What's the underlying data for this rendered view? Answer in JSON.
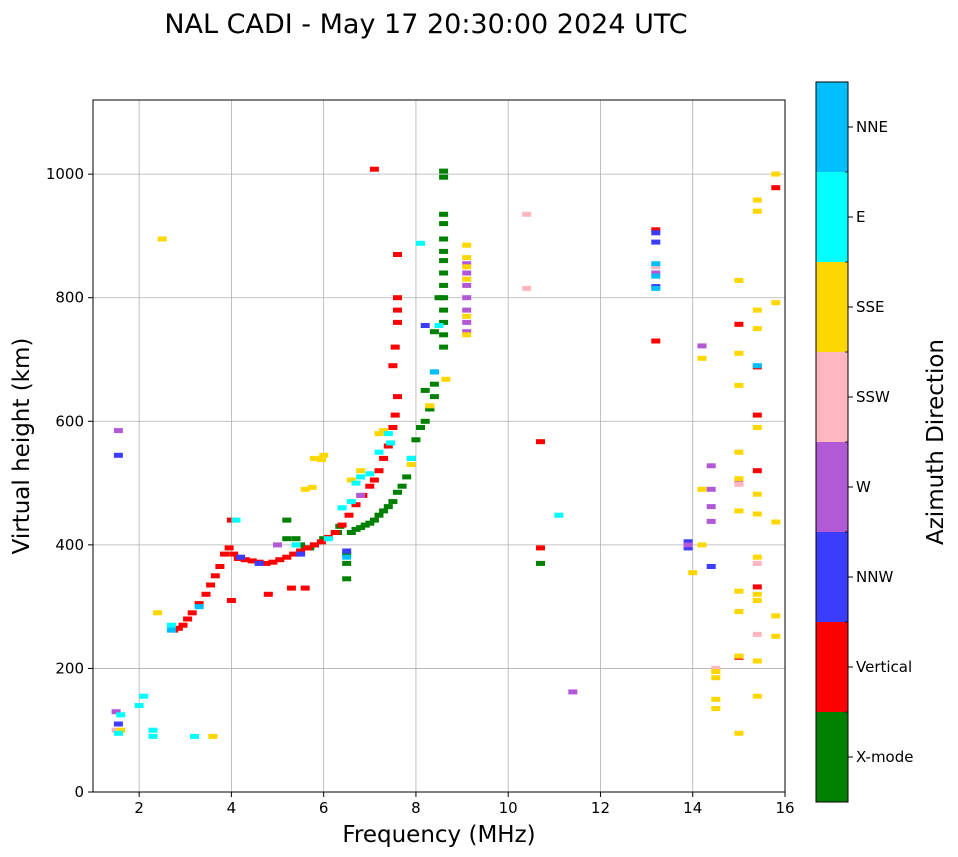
{
  "chart_data": {
    "type": "scatter",
    "title": "NAL CADI - May 17 20:30:00 2024 UTC",
    "xlabel": "Frequency (MHz)",
    "ylabel": "Virtual height (km)",
    "xlim": [
      1,
      16
    ],
    "ylim": [
      0,
      1120
    ],
    "xticks": [
      2,
      4,
      6,
      8,
      10,
      12,
      14,
      16
    ],
    "yticks": [
      0,
      200,
      400,
      600,
      800,
      1000
    ],
    "grid": true,
    "colorbar": {
      "label": "Azimuth Direction",
      "categories": [
        {
          "name": "X-mode",
          "color": "#008000"
        },
        {
          "name": "Vertical",
          "color": "#ff0000"
        },
        {
          "name": "NNW",
          "color": "#3c3cff"
        },
        {
          "name": "W",
          "color": "#b25ad6"
        },
        {
          "name": "SSW",
          "color": "#ffb6c1"
        },
        {
          "name": "SSE",
          "color": "#ffd700"
        },
        {
          "name": "E",
          "color": "#00ffff"
        },
        {
          "name": "NNE",
          "color": "#00bfff"
        }
      ]
    },
    "series": [
      {
        "name": "X-mode",
        "points": [
          [
            5.2,
            440
          ],
          [
            5.2,
            410
          ],
          [
            5.4,
            410
          ],
          [
            5.5,
            400
          ],
          [
            5.6,
            395
          ],
          [
            5.7,
            395
          ],
          [
            5.8,
            400
          ],
          [
            6.0,
            410
          ],
          [
            6.3,
            420
          ],
          [
            6.35,
            430
          ],
          [
            6.5,
            345
          ],
          [
            6.5,
            370
          ],
          [
            6.5,
            385
          ],
          [
            6.6,
            420
          ],
          [
            6.7,
            425
          ],
          [
            6.8,
            428
          ],
          [
            6.9,
            432
          ],
          [
            7.0,
            435
          ],
          [
            7.1,
            440
          ],
          [
            7.2,
            448
          ],
          [
            7.3,
            455
          ],
          [
            7.4,
            462
          ],
          [
            7.5,
            470
          ],
          [
            7.6,
            485
          ],
          [
            7.7,
            495
          ],
          [
            7.8,
            510
          ],
          [
            7.9,
            540
          ],
          [
            8.0,
            570
          ],
          [
            8.1,
            590
          ],
          [
            8.2,
            600
          ],
          [
            8.3,
            620
          ],
          [
            8.4,
            640
          ],
          [
            8.4,
            660
          ],
          [
            8.4,
            680
          ],
          [
            8.3,
            620
          ],
          [
            8.2,
            650
          ],
          [
            8.4,
            745
          ],
          [
            8.5,
            800
          ],
          [
            8.6,
            720
          ],
          [
            8.6,
            740
          ],
          [
            8.6,
            760
          ],
          [
            8.6,
            780
          ],
          [
            8.6,
            800
          ],
          [
            8.6,
            820
          ],
          [
            8.6,
            840
          ],
          [
            8.6,
            860
          ],
          [
            8.6,
            875
          ],
          [
            8.6,
            895
          ],
          [
            8.6,
            920
          ],
          [
            8.6,
            935
          ],
          [
            8.6,
            995
          ],
          [
            8.6,
            1005
          ],
          [
            10.7,
            370
          ]
        ]
      },
      {
        "name": "Vertical",
        "points": [
          [
            2.75,
            262
          ],
          [
            2.85,
            265
          ],
          [
            2.95,
            270
          ],
          [
            3.05,
            280
          ],
          [
            3.15,
            290
          ],
          [
            3.3,
            305
          ],
          [
            3.45,
            320
          ],
          [
            3.55,
            335
          ],
          [
            3.65,
            350
          ],
          [
            3.75,
            365
          ],
          [
            3.85,
            385
          ],
          [
            3.95,
            395
          ],
          [
            4.05,
            385
          ],
          [
            4.15,
            378
          ],
          [
            4.3,
            376
          ],
          [
            4.45,
            374
          ],
          [
            4.6,
            372
          ],
          [
            4.75,
            370
          ],
          [
            4.9,
            372
          ],
          [
            5.05,
            376
          ],
          [
            5.2,
            380
          ],
          [
            5.35,
            385
          ],
          [
            5.5,
            390
          ],
          [
            5.65,
            395
          ],
          [
            5.8,
            400
          ],
          [
            5.95,
            405
          ],
          [
            6.1,
            412
          ],
          [
            6.25,
            420
          ],
          [
            6.4,
            432
          ],
          [
            6.55,
            448
          ],
          [
            6.7,
            465
          ],
          [
            6.85,
            480
          ],
          [
            7.0,
            495
          ],
          [
            7.1,
            505
          ],
          [
            7.2,
            520
          ],
          [
            7.3,
            540
          ],
          [
            7.4,
            560
          ],
          [
            7.5,
            590
          ],
          [
            7.55,
            610
          ],
          [
            7.6,
            640
          ],
          [
            7.5,
            690
          ],
          [
            7.55,
            720
          ],
          [
            7.6,
            760
          ],
          [
            7.6,
            780
          ],
          [
            7.6,
            800
          ],
          [
            7.6,
            870
          ],
          [
            7.1,
            1008
          ],
          [
            4.0,
            440
          ],
          [
            4.0,
            310
          ],
          [
            4.8,
            320
          ],
          [
            5.3,
            330
          ],
          [
            5.6,
            330
          ],
          [
            10.7,
            395
          ],
          [
            10.7,
            567
          ],
          [
            13.2,
            730
          ],
          [
            13.2,
            910
          ],
          [
            15.0,
            218
          ],
          [
            15.0,
            757
          ],
          [
            15.4,
            610
          ],
          [
            15.4,
            520
          ],
          [
            15.4,
            332
          ],
          [
            15.4,
            688
          ],
          [
            15.8,
            978
          ]
        ]
      },
      {
        "name": "NNW",
        "points": [
          [
            1.55,
            545
          ],
          [
            4.2,
            380
          ],
          [
            4.6,
            370
          ],
          [
            5.5,
            385
          ],
          [
            6.5,
            390
          ],
          [
            8.2,
            755
          ],
          [
            13.2,
            818
          ],
          [
            13.2,
            890
          ],
          [
            13.2,
            905
          ],
          [
            13.9,
            395
          ],
          [
            13.9,
            405
          ],
          [
            14.4,
            365
          ],
          [
            1.55,
            110
          ]
        ]
      },
      {
        "name": "W",
        "points": [
          [
            1.55,
            585
          ],
          [
            1.5,
            130
          ],
          [
            5.0,
            400
          ],
          [
            6.8,
            480
          ],
          [
            9.1,
            745
          ],
          [
            9.1,
            760
          ],
          [
            9.1,
            780
          ],
          [
            9.1,
            800
          ],
          [
            9.1,
            820
          ],
          [
            9.1,
            840
          ],
          [
            9.1,
            855
          ],
          [
            13.2,
            840
          ],
          [
            13.9,
            400
          ],
          [
            14.2,
            722
          ],
          [
            14.4,
            528
          ],
          [
            14.4,
            490
          ],
          [
            14.4,
            462
          ],
          [
            14.4,
            438
          ],
          [
            11.4,
            162
          ],
          [
            15.0,
            500
          ]
        ]
      },
      {
        "name": "SSW",
        "points": [
          [
            1.5,
            100
          ],
          [
            10.4,
            935
          ],
          [
            10.4,
            815
          ],
          [
            14.5,
            200
          ],
          [
            15.0,
            498
          ],
          [
            15.4,
            370
          ],
          [
            15.4,
            255
          ],
          [
            13.2,
            850
          ]
        ]
      },
      {
        "name": "SSE",
        "points": [
          [
            2.5,
            895
          ],
          [
            2.4,
            290
          ],
          [
            3.6,
            90
          ],
          [
            1.6,
            100
          ],
          [
            5.6,
            490
          ],
          [
            5.75,
            493
          ],
          [
            5.8,
            540
          ],
          [
            5.95,
            538
          ],
          [
            6.0,
            545
          ],
          [
            6.6,
            505
          ],
          [
            6.8,
            520
          ],
          [
            7.2,
            580
          ],
          [
            7.3,
            585
          ],
          [
            7.9,
            530
          ],
          [
            8.3,
            625
          ],
          [
            8.65,
            668
          ],
          [
            9.1,
            740
          ],
          [
            9.1,
            770
          ],
          [
            9.1,
            830
          ],
          [
            9.1,
            850
          ],
          [
            9.1,
            865
          ],
          [
            9.1,
            885
          ],
          [
            14.0,
            355
          ],
          [
            14.2,
            400
          ],
          [
            14.2,
            490
          ],
          [
            14.2,
            702
          ],
          [
            14.5,
            195
          ],
          [
            14.5,
            185
          ],
          [
            14.5,
            150
          ],
          [
            14.5,
            135
          ],
          [
            15.0,
            95
          ],
          [
            15.0,
            220
          ],
          [
            15.0,
            292
          ],
          [
            15.0,
            325
          ],
          [
            15.0,
            455
          ],
          [
            15.0,
            507
          ],
          [
            15.0,
            550
          ],
          [
            15.0,
            658
          ],
          [
            15.0,
            710
          ],
          [
            15.0,
            828
          ],
          [
            15.4,
            155
          ],
          [
            15.4,
            212
          ],
          [
            15.4,
            310
          ],
          [
            15.4,
            320
          ],
          [
            15.4,
            380
          ],
          [
            15.4,
            450
          ],
          [
            15.4,
            482
          ],
          [
            15.4,
            590
          ],
          [
            15.4,
            750
          ],
          [
            15.4,
            780
          ],
          [
            15.4,
            940
          ],
          [
            15.4,
            958
          ],
          [
            15.8,
            252
          ],
          [
            15.8,
            285
          ],
          [
            15.8,
            437
          ],
          [
            15.8,
            792
          ],
          [
            15.8,
            1000
          ]
        ]
      },
      {
        "name": "E",
        "points": [
          [
            1.55,
            95
          ],
          [
            1.6,
            125
          ],
          [
            2.0,
            140
          ],
          [
            2.1,
            155
          ],
          [
            2.3,
            90
          ],
          [
            2.3,
            100
          ],
          [
            3.2,
            90
          ],
          [
            6.1,
            410
          ],
          [
            6.4,
            460
          ],
          [
            6.6,
            470
          ],
          [
            6.7,
            500
          ],
          [
            6.8,
            510
          ],
          [
            7.0,
            515
          ],
          [
            7.2,
            550
          ],
          [
            7.4,
            580
          ],
          [
            7.45,
            565
          ],
          [
            7.9,
            540
          ],
          [
            8.1,
            888
          ],
          [
            8.5,
            755
          ],
          [
            11.1,
            448
          ],
          [
            2.7,
            270
          ],
          [
            4.1,
            440
          ],
          [
            5.4,
            400
          ]
        ]
      },
      {
        "name": "NNE",
        "points": [
          [
            2.7,
            262
          ],
          [
            3.3,
            300
          ],
          [
            6.5,
            380
          ],
          [
            8.4,
            680
          ],
          [
            13.2,
            835
          ],
          [
            13.2,
            855
          ],
          [
            13.2,
            815
          ],
          [
            15.4,
            690
          ]
        ]
      }
    ]
  }
}
